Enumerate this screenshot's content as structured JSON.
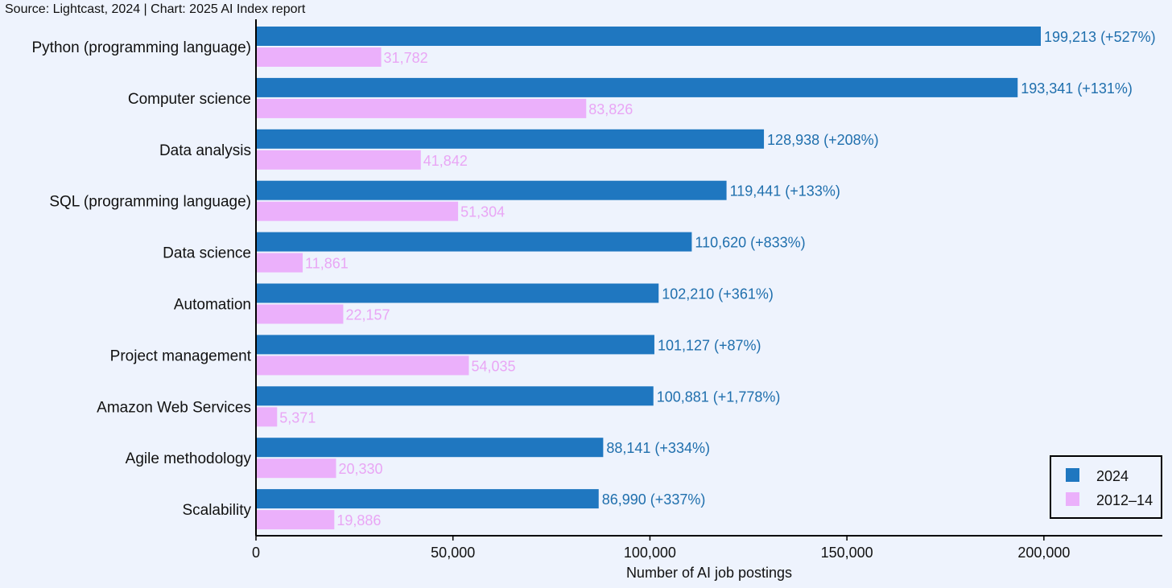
{
  "source_text": "Source: Lightcast, 2024 | Chart: 2025 AI Index report",
  "colors": {
    "series_2024": "#1f77c0",
    "series_2012_14": "#ebb0fb",
    "label_2024": "#1f6fad",
    "label_2012_14": "#e9a6f5",
    "background": "#eef3fd"
  },
  "chart_data": {
    "type": "bar",
    "orientation": "horizontal",
    "xlabel": "Number of AI job postings",
    "xlim": [
      0,
      230000
    ],
    "xticks": [
      0,
      50000,
      100000,
      150000,
      200000
    ],
    "xtick_labels": [
      "0",
      "50,000",
      "100,000",
      "150,000",
      "200,000"
    ],
    "grid": false,
    "legend_position": "bottom-right",
    "categories": [
      "Python (programming language)",
      "Computer science",
      "Data analysis",
      "SQL (programming language)",
      "Data science",
      "Automation",
      "Project management",
      "Amazon Web Services",
      "Agile methodology",
      "Scalability"
    ],
    "series": [
      {
        "name": "2024",
        "values": [
          199213,
          193341,
          128938,
          119441,
          110620,
          102210,
          101127,
          100881,
          88141,
          86990
        ],
        "labels": [
          "199,213 (+527%)",
          "193,341 (+131%)",
          "128,938 (+208%)",
          "119,441 (+133%)",
          "110,620 (+833%)",
          "102,210 (+361%)",
          "101,127 (+87%)",
          "100,881 (+1,778%)",
          "88,141 (+334%)",
          "86,990 (+337%)"
        ]
      },
      {
        "name": "2012–14",
        "values": [
          31782,
          83826,
          41842,
          51304,
          11861,
          22157,
          54035,
          5371,
          20330,
          19886
        ],
        "labels": [
          "31,782",
          "83,826",
          "41,842",
          "51,304",
          "11,861",
          "22,157",
          "54,035",
          "5,371",
          "20,330",
          "19,886"
        ]
      }
    ]
  }
}
